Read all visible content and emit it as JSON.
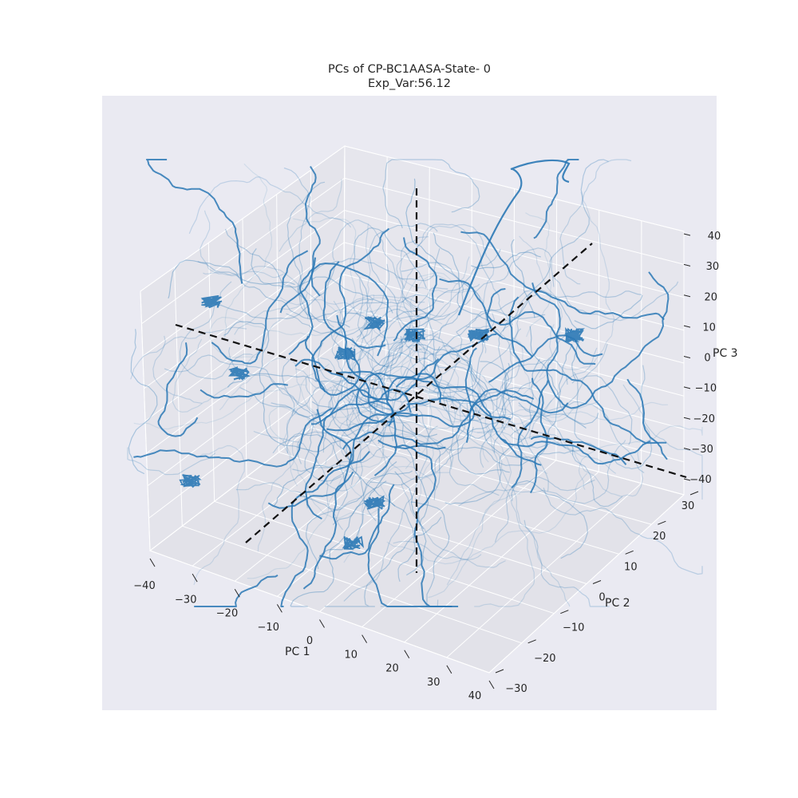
{
  "chart_data": {
    "type": "scatter",
    "title": "PCs of CP-BC1AASA-State- 0",
    "subtitle": "Exp_Var:56.12",
    "xlabel": "PC 1",
    "ylabel": "PC 2",
    "zlabel": "PC 3",
    "xlim": [
      -40,
      40
    ],
    "ylim": [
      -30,
      30
    ],
    "zlim": [
      -40,
      40
    ],
    "x_ticks": [
      "−40",
      "−30",
      "−20",
      "−10",
      "0",
      "10",
      "20",
      "30",
      "40"
    ],
    "y_ticks": [
      "−30",
      "−20",
      "−10",
      "0",
      "10",
      "20",
      "30"
    ],
    "z_ticks": [
      "−40",
      "−30",
      "−20",
      "−10",
      "0",
      "10",
      "20",
      "30",
      "40"
    ],
    "series_color": "#2a78b5",
    "reference_axes_color": "#111111",
    "grid": true,
    "description_style": "many trajectories forming a dense cloud centred near the origin, with dashed reference axes through the origin"
  }
}
